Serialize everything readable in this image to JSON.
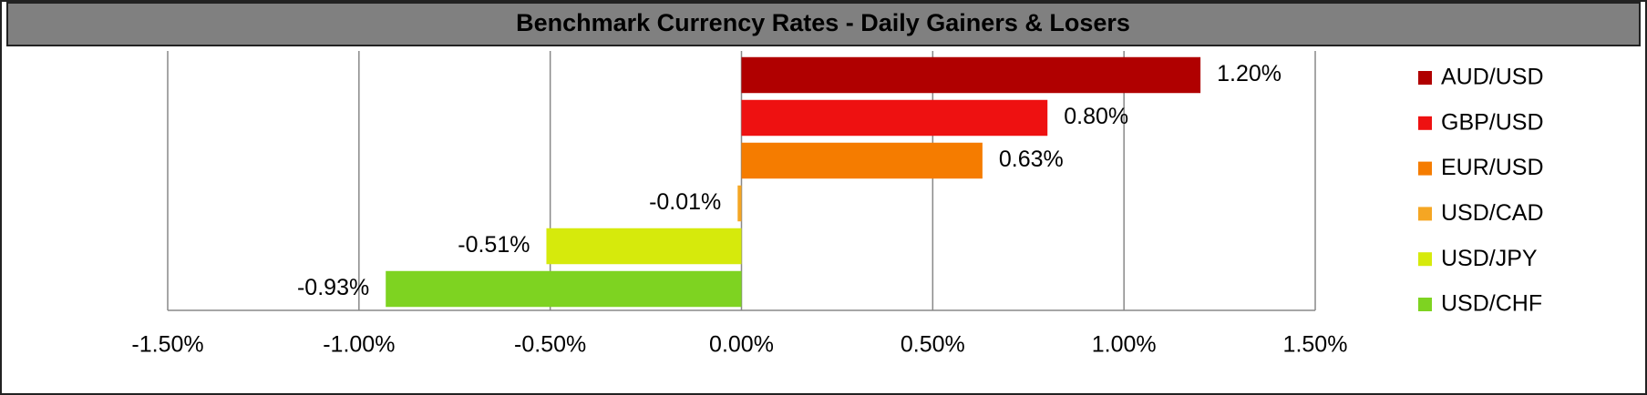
{
  "chart_data": {
    "type": "hbar",
    "title": "Benchmark Currency Rates - Daily Gainers & Losers",
    "categories": [
      "AUD/USD",
      "GBP/USD",
      "EUR/USD",
      "USD/CAD",
      "USD/JPY",
      "USD/CHF"
    ],
    "values": [
      1.2,
      0.8,
      0.63,
      -0.01,
      -0.51,
      -0.93
    ],
    "value_labels": [
      "1.20%",
      "0.80%",
      "0.63%",
      "-0.01%",
      "-0.51%",
      "-0.93%"
    ],
    "colors": [
      "#b00000",
      "#ee1111",
      "#f57c00",
      "#f5a623",
      "#d6ea0c",
      "#7ed321"
    ],
    "xlim": [
      -1.5,
      1.5
    ],
    "xticks": [
      {
        "value": -1.5,
        "label": "-1.50%"
      },
      {
        "value": -1.0,
        "label": "-1.00%"
      },
      {
        "value": -0.5,
        "label": "-0.50%"
      },
      {
        "value": 0,
        "label": "0.00%"
      },
      {
        "value": 0.5,
        "label": "0.50%"
      },
      {
        "value": 1.0,
        "label": "1.00%"
      },
      {
        "value": 1.5,
        "label": "1.50%"
      }
    ],
    "grid": true,
    "legend": "right"
  }
}
